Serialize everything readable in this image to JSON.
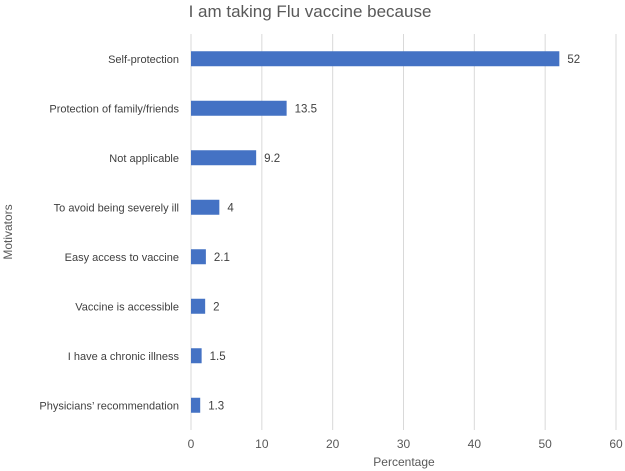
{
  "chart_data": {
    "type": "bar",
    "orientation": "horizontal",
    "title": "I am taking Flu vaccine because",
    "xlabel": "Percentage",
    "ylabel": "Motivators",
    "categories": [
      "Self-protection",
      "Protection of family/friends",
      "Not applicable",
      "To avoid being severely ill",
      "Easy access to vaccine",
      "Vaccine is accessible",
      "I have a chronic illness",
      "Physicians’ recommendation"
    ],
    "values": [
      52,
      13.5,
      9.2,
      4,
      2.1,
      2,
      1.5,
      1.3
    ],
    "value_labels": [
      "52",
      "13.5",
      "9.2",
      "4",
      "2.1",
      "2",
      "1.5",
      "1.3"
    ],
    "xlim": [
      0,
      60
    ],
    "xticks": [
      0,
      10,
      20,
      30,
      40,
      50,
      60
    ],
    "grid": "vertical",
    "legend": "none",
    "bar_color": "#4472c4"
  }
}
